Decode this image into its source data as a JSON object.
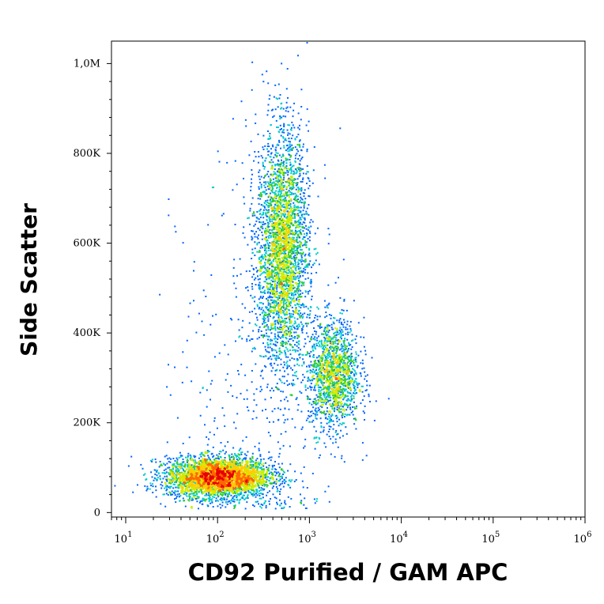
{
  "chart_data": {
    "type": "scatter",
    "style": "density-dot-plot",
    "xlabel": "CD92 Purified / GAM APC",
    "ylabel": "Side Scatter",
    "x_scale": "log",
    "xlim": [
      7,
      1000000
    ],
    "ylim": [
      -10000,
      1050000
    ],
    "x_ticks": [
      {
        "value": 10,
        "base": "10",
        "exp": "1"
      },
      {
        "value": 100,
        "base": "10",
        "exp": "2"
      },
      {
        "value": 1000,
        "base": "10",
        "exp": "3"
      },
      {
        "value": 10000,
        "base": "10",
        "exp": "4"
      },
      {
        "value": 100000,
        "base": "10",
        "exp": "5"
      },
      {
        "value": 1000000,
        "base": "10",
        "exp": "6"
      }
    ],
    "y_ticks": [
      {
        "value": 0,
        "label": "0"
      },
      {
        "value": 200000,
        "label": "200K"
      },
      {
        "value": 400000,
        "label": "400K"
      },
      {
        "value": 600000,
        "label": "600K"
      },
      {
        "value": 800000,
        "label": "800K"
      },
      {
        "value": 1000000,
        "label": "1,0M"
      }
    ],
    "populations": [
      {
        "x_center": 100,
        "x_log_sd": 0.28,
        "y_center": 80000,
        "y_sd": 22000,
        "weight": 0.42
      },
      {
        "x_center": 500,
        "x_log_sd": 0.14,
        "y_center": 590000,
        "y_sd": 130000,
        "weight": 0.36
      },
      {
        "x_center": 1800,
        "x_log_sd": 0.14,
        "y_center": 310000,
        "y_sd": 60000,
        "weight": 0.17
      },
      {
        "x_center": 300,
        "x_log_sd": 0.45,
        "y_center": 300000,
        "y_sd": 250000,
        "weight": 0.05
      }
    ],
    "colormap": [
      "#0000cc",
      "#0066ff",
      "#00cccc",
      "#33cc33",
      "#ccee00",
      "#ffcc00",
      "#ff6600",
      "#e60000"
    ],
    "grid": false,
    "legend": "none"
  }
}
